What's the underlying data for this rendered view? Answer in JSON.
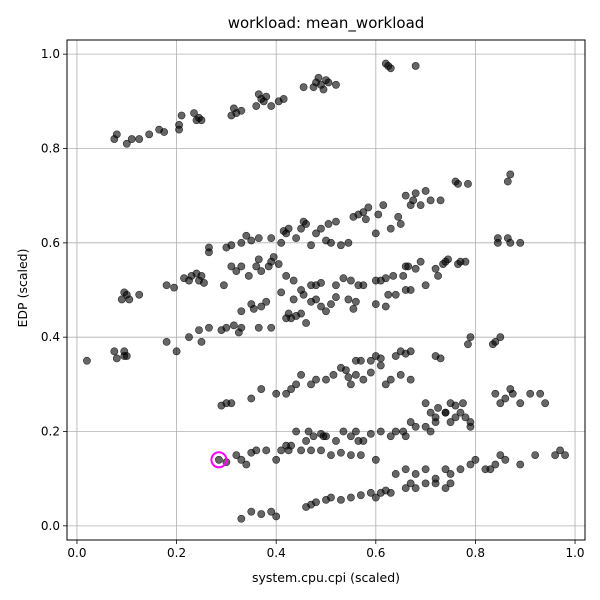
{
  "chart_data": {
    "type": "scatter",
    "title": "workload: mean_workload",
    "xlabel": "system.cpu.cpi (scaled)",
    "ylabel": "EDP (scaled)",
    "xlim": [
      -0.02,
      1.02
    ],
    "ylim": [
      -0.03,
      1.03
    ],
    "xticks": [
      0.0,
      0.2,
      0.4,
      0.6,
      0.8,
      1.0
    ],
    "yticks": [
      0.0,
      0.2,
      0.4,
      0.6,
      0.8,
      1.0
    ],
    "grid": true,
    "point_color": "#000000",
    "point_opacity": 0.6,
    "highlight_color": "#ff00ff",
    "highlight_point": {
      "x": 0.285,
      "y": 0.14
    },
    "points": [
      [
        0.02,
        0.35
      ],
      [
        0.075,
        0.37
      ],
      [
        0.08,
        0.355
      ],
      [
        0.095,
        0.37
      ],
      [
        0.1,
        0.36
      ],
      [
        0.095,
        0.36
      ],
      [
        0.075,
        0.82
      ],
      [
        0.08,
        0.83
      ],
      [
        0.1,
        0.81
      ],
      [
        0.11,
        0.82
      ],
      [
        0.125,
        0.82
      ],
      [
        0.145,
        0.83
      ],
      [
        0.165,
        0.84
      ],
      [
        0.175,
        0.835
      ],
      [
        0.205,
        0.85
      ],
      [
        0.21,
        0.87
      ],
      [
        0.205,
        0.84
      ],
      [
        0.235,
        0.875
      ],
      [
        0.24,
        0.86
      ],
      [
        0.245,
        0.865
      ],
      [
        0.25,
        0.86
      ],
      [
        0.31,
        0.87
      ],
      [
        0.315,
        0.885
      ],
      [
        0.32,
        0.875
      ],
      [
        0.33,
        0.88
      ],
      [
        0.36,
        0.89
      ],
      [
        0.365,
        0.915
      ],
      [
        0.37,
        0.905
      ],
      [
        0.375,
        0.9
      ],
      [
        0.38,
        0.91
      ],
      [
        0.39,
        0.89
      ],
      [
        0.405,
        0.9
      ],
      [
        0.415,
        0.905
      ],
      [
        0.455,
        0.93
      ],
      [
        0.475,
        0.93
      ],
      [
        0.48,
        0.94
      ],
      [
        0.485,
        0.95
      ],
      [
        0.49,
        0.935
      ],
      [
        0.495,
        0.925
      ],
      [
        0.5,
        0.945
      ],
      [
        0.505,
        0.94
      ],
      [
        0.52,
        0.935
      ],
      [
        0.62,
        0.98
      ],
      [
        0.625,
        0.975
      ],
      [
        0.63,
        0.97
      ],
      [
        0.68,
        0.975
      ],
      [
        0.09,
        0.48
      ],
      [
        0.095,
        0.495
      ],
      [
        0.1,
        0.49
      ],
      [
        0.105,
        0.48
      ],
      [
        0.125,
        0.49
      ],
      [
        0.18,
        0.51
      ],
      [
        0.195,
        0.505
      ],
      [
        0.215,
        0.525
      ],
      [
        0.225,
        0.52
      ],
      [
        0.23,
        0.53
      ],
      [
        0.24,
        0.535
      ],
      [
        0.245,
        0.52
      ],
      [
        0.25,
        0.53
      ],
      [
        0.255,
        0.515
      ],
      [
        0.265,
        0.59
      ],
      [
        0.265,
        0.58
      ],
      [
        0.3,
        0.59
      ],
      [
        0.31,
        0.595
      ],
      [
        0.33,
        0.6
      ],
      [
        0.34,
        0.615
      ],
      [
        0.35,
        0.605
      ],
      [
        0.36,
        0.55
      ],
      [
        0.365,
        0.61
      ],
      [
        0.39,
        0.61
      ],
      [
        0.39,
        0.56
      ],
      [
        0.395,
        0.57
      ],
      [
        0.405,
        0.555
      ],
      [
        0.41,
        0.6
      ],
      [
        0.415,
        0.625
      ],
      [
        0.42,
        0.62
      ],
      [
        0.425,
        0.63
      ],
      [
        0.44,
        0.61
      ],
      [
        0.45,
        0.63
      ],
      [
        0.455,
        0.645
      ],
      [
        0.46,
        0.64
      ],
      [
        0.47,
        0.595
      ],
      [
        0.48,
        0.62
      ],
      [
        0.49,
        0.63
      ],
      [
        0.5,
        0.605
      ],
      [
        0.505,
        0.64
      ],
      [
        0.51,
        0.6
      ],
      [
        0.52,
        0.645
      ],
      [
        0.53,
        0.595
      ],
      [
        0.545,
        0.6
      ],
      [
        0.295,
        0.51
      ],
      [
        0.31,
        0.55
      ],
      [
        0.32,
        0.54
      ],
      [
        0.33,
        0.55
      ],
      [
        0.345,
        0.53
      ],
      [
        0.365,
        0.565
      ],
      [
        0.37,
        0.54
      ],
      [
        0.385,
        0.55
      ],
      [
        0.42,
        0.53
      ],
      [
        0.435,
        0.52
      ],
      [
        0.45,
        0.5
      ],
      [
        0.47,
        0.51
      ],
      [
        0.48,
        0.51
      ],
      [
        0.49,
        0.515
      ],
      [
        0.52,
        0.51
      ],
      [
        0.535,
        0.525
      ],
      [
        0.55,
        0.52
      ],
      [
        0.565,
        0.51
      ],
      [
        0.575,
        0.51
      ],
      [
        0.6,
        0.52
      ],
      [
        0.61,
        0.52
      ],
      [
        0.62,
        0.525
      ],
      [
        0.635,
        0.53
      ],
      [
        0.655,
        0.53
      ],
      [
        0.66,
        0.55
      ],
      [
        0.665,
        0.55
      ],
      [
        0.68,
        0.545
      ],
      [
        0.69,
        0.56
      ],
      [
        0.7,
        0.51
      ],
      [
        0.72,
        0.545
      ],
      [
        0.725,
        0.53
      ],
      [
        0.735,
        0.555
      ],
      [
        0.74,
        0.56
      ],
      [
        0.745,
        0.565
      ],
      [
        0.765,
        0.555
      ],
      [
        0.77,
        0.56
      ],
      [
        0.78,
        0.56
      ],
      [
        0.555,
        0.655
      ],
      [
        0.565,
        0.66
      ],
      [
        0.575,
        0.665
      ],
      [
        0.58,
        0.65
      ],
      [
        0.585,
        0.675
      ],
      [
        0.6,
        0.62
      ],
      [
        0.605,
        0.66
      ],
      [
        0.615,
        0.68
      ],
      [
        0.63,
        0.63
      ],
      [
        0.645,
        0.655
      ],
      [
        0.65,
        0.64
      ],
      [
        0.66,
        0.7
      ],
      [
        0.67,
        0.68
      ],
      [
        0.675,
        0.69
      ],
      [
        0.68,
        0.705
      ],
      [
        0.69,
        0.68
      ],
      [
        0.7,
        0.71
      ],
      [
        0.71,
        0.69
      ],
      [
        0.73,
        0.69
      ],
      [
        0.76,
        0.73
      ],
      [
        0.765,
        0.725
      ],
      [
        0.785,
        0.725
      ],
      [
        0.845,
        0.61
      ],
      [
        0.845,
        0.6
      ],
      [
        0.865,
        0.61
      ],
      [
        0.87,
        0.6
      ],
      [
        0.89,
        0.6
      ],
      [
        0.865,
        0.73
      ],
      [
        0.87,
        0.745
      ],
      [
        0.18,
        0.39
      ],
      [
        0.2,
        0.37
      ],
      [
        0.225,
        0.4
      ],
      [
        0.245,
        0.415
      ],
      [
        0.25,
        0.39
      ],
      [
        0.265,
        0.42
      ],
      [
        0.29,
        0.415
      ],
      [
        0.3,
        0.42
      ],
      [
        0.315,
        0.425
      ],
      [
        0.325,
        0.41
      ],
      [
        0.33,
        0.42
      ],
      [
        0.33,
        0.455
      ],
      [
        0.35,
        0.47
      ],
      [
        0.355,
        0.46
      ],
      [
        0.365,
        0.42
      ],
      [
        0.37,
        0.465
      ],
      [
        0.38,
        0.475
      ],
      [
        0.39,
        0.42
      ],
      [
        0.41,
        0.495
      ],
      [
        0.42,
        0.44
      ],
      [
        0.425,
        0.45
      ],
      [
        0.43,
        0.44
      ],
      [
        0.435,
        0.48
      ],
      [
        0.44,
        0.445
      ],
      [
        0.45,
        0.45
      ],
      [
        0.455,
        0.49
      ],
      [
        0.46,
        0.43
      ],
      [
        0.47,
        0.475
      ],
      [
        0.48,
        0.48
      ],
      [
        0.49,
        0.465
      ],
      [
        0.5,
        0.455
      ],
      [
        0.51,
        0.47
      ],
      [
        0.52,
        0.485
      ],
      [
        0.545,
        0.48
      ],
      [
        0.555,
        0.46
      ],
      [
        0.56,
        0.475
      ],
      [
        0.6,
        0.47
      ],
      [
        0.62,
        0.465
      ],
      [
        0.625,
        0.49
      ],
      [
        0.64,
        0.49
      ],
      [
        0.66,
        0.5
      ],
      [
        0.67,
        0.5
      ],
      [
        0.785,
        0.385
      ],
      [
        0.79,
        0.4
      ],
      [
        0.835,
        0.385
      ],
      [
        0.84,
        0.39
      ],
      [
        0.85,
        0.4
      ],
      [
        0.56,
        0.35
      ],
      [
        0.57,
        0.35
      ],
      [
        0.59,
        0.35
      ],
      [
        0.6,
        0.36
      ],
      [
        0.61,
        0.355
      ],
      [
        0.64,
        0.36
      ],
      [
        0.65,
        0.37
      ],
      [
        0.66,
        0.365
      ],
      [
        0.67,
        0.37
      ],
      [
        0.72,
        0.36
      ],
      [
        0.73,
        0.355
      ],
      [
        0.29,
        0.255
      ],
      [
        0.3,
        0.26
      ],
      [
        0.31,
        0.26
      ],
      [
        0.35,
        0.27
      ],
      [
        0.37,
        0.29
      ],
      [
        0.4,
        0.28
      ],
      [
        0.42,
        0.28
      ],
      [
        0.43,
        0.29
      ],
      [
        0.44,
        0.3
      ],
      [
        0.45,
        0.32
      ],
      [
        0.47,
        0.3
      ],
      [
        0.48,
        0.31
      ],
      [
        0.5,
        0.31
      ],
      [
        0.515,
        0.32
      ],
      [
        0.53,
        0.335
      ],
      [
        0.54,
        0.33
      ],
      [
        0.545,
        0.315
      ],
      [
        0.55,
        0.3
      ],
      [
        0.56,
        0.32
      ],
      [
        0.575,
        0.31
      ],
      [
        0.59,
        0.325
      ],
      [
        0.61,
        0.34
      ],
      [
        0.62,
        0.3
      ],
      [
        0.63,
        0.31
      ],
      [
        0.65,
        0.32
      ],
      [
        0.67,
        0.31
      ],
      [
        0.7,
        0.26
      ],
      [
        0.71,
        0.24
      ],
      [
        0.72,
        0.23
      ],
      [
        0.725,
        0.25
      ],
      [
        0.74,
        0.24
      ],
      [
        0.75,
        0.26
      ],
      [
        0.76,
        0.255
      ],
      [
        0.775,
        0.26
      ],
      [
        0.78,
        0.23
      ],
      [
        0.79,
        0.22
      ],
      [
        0.84,
        0.28
      ],
      [
        0.85,
        0.26
      ],
      [
        0.86,
        0.27
      ],
      [
        0.87,
        0.29
      ],
      [
        0.875,
        0.28
      ],
      [
        0.89,
        0.26
      ],
      [
        0.91,
        0.28
      ],
      [
        0.93,
        0.28
      ],
      [
        0.94,
        0.26
      ],
      [
        0.42,
        0.17
      ],
      [
        0.425,
        0.16
      ],
      [
        0.43,
        0.17
      ],
      [
        0.44,
        0.2
      ],
      [
        0.46,
        0.18
      ],
      [
        0.465,
        0.2
      ],
      [
        0.475,
        0.19
      ],
      [
        0.49,
        0.195
      ],
      [
        0.495,
        0.19
      ],
      [
        0.5,
        0.19
      ],
      [
        0.52,
        0.18
      ],
      [
        0.535,
        0.2
      ],
      [
        0.55,
        0.19
      ],
      [
        0.56,
        0.2
      ],
      [
        0.565,
        0.18
      ],
      [
        0.575,
        0.18
      ],
      [
        0.59,
        0.195
      ],
      [
        0.61,
        0.2
      ],
      [
        0.63,
        0.19
      ],
      [
        0.64,
        0.2
      ],
      [
        0.655,
        0.2
      ],
      [
        0.66,
        0.19
      ],
      [
        0.67,
        0.22
      ],
      [
        0.68,
        0.21
      ],
      [
        0.7,
        0.21
      ],
      [
        0.71,
        0.2
      ],
      [
        0.72,
        0.22
      ],
      [
        0.74,
        0.24
      ],
      [
        0.75,
        0.22
      ],
      [
        0.76,
        0.23
      ],
      [
        0.77,
        0.24
      ],
      [
        0.79,
        0.21
      ],
      [
        0.285,
        0.14
      ],
      [
        0.3,
        0.135
      ],
      [
        0.32,
        0.15
      ],
      [
        0.33,
        0.14
      ],
      [
        0.34,
        0.13
      ],
      [
        0.35,
        0.155
      ],
      [
        0.36,
        0.16
      ],
      [
        0.38,
        0.16
      ],
      [
        0.4,
        0.14
      ],
      [
        0.41,
        0.16
      ],
      [
        0.45,
        0.16
      ],
      [
        0.47,
        0.16
      ],
      [
        0.49,
        0.16
      ],
      [
        0.51,
        0.15
      ],
      [
        0.53,
        0.155
      ],
      [
        0.55,
        0.15
      ],
      [
        0.57,
        0.15
      ],
      [
        0.6,
        0.14
      ],
      [
        0.64,
        0.11
      ],
      [
        0.66,
        0.12
      ],
      [
        0.68,
        0.11
      ],
      [
        0.7,
        0.12
      ],
      [
        0.72,
        0.1
      ],
      [
        0.74,
        0.12
      ],
      [
        0.75,
        0.11
      ],
      [
        0.77,
        0.12
      ],
      [
        0.79,
        0.13
      ],
      [
        0.8,
        0.14
      ],
      [
        0.82,
        0.12
      ],
      [
        0.83,
        0.12
      ],
      [
        0.84,
        0.13
      ],
      [
        0.85,
        0.15
      ],
      [
        0.86,
        0.14
      ],
      [
        0.89,
        0.13
      ],
      [
        0.92,
        0.15
      ],
      [
        0.96,
        0.15
      ],
      [
        0.97,
        0.16
      ],
      [
        0.98,
        0.15
      ],
      [
        0.33,
        0.015
      ],
      [
        0.35,
        0.03
      ],
      [
        0.37,
        0.025
      ],
      [
        0.39,
        0.03
      ],
      [
        0.4,
        0.02
      ],
      [
        0.46,
        0.04
      ],
      [
        0.47,
        0.045
      ],
      [
        0.48,
        0.05
      ],
      [
        0.5,
        0.055
      ],
      [
        0.51,
        0.06
      ],
      [
        0.53,
        0.055
      ],
      [
        0.55,
        0.06
      ],
      [
        0.57,
        0.065
      ],
      [
        0.59,
        0.07
      ],
      [
        0.6,
        0.06
      ],
      [
        0.61,
        0.07
      ],
      [
        0.62,
        0.075
      ],
      [
        0.63,
        0.07
      ],
      [
        0.66,
        0.08
      ],
      [
        0.67,
        0.09
      ],
      [
        0.68,
        0.08
      ],
      [
        0.7,
        0.09
      ],
      [
        0.72,
        0.09
      ],
      [
        0.74,
        0.08
      ],
      [
        0.75,
        0.09
      ]
    ]
  }
}
